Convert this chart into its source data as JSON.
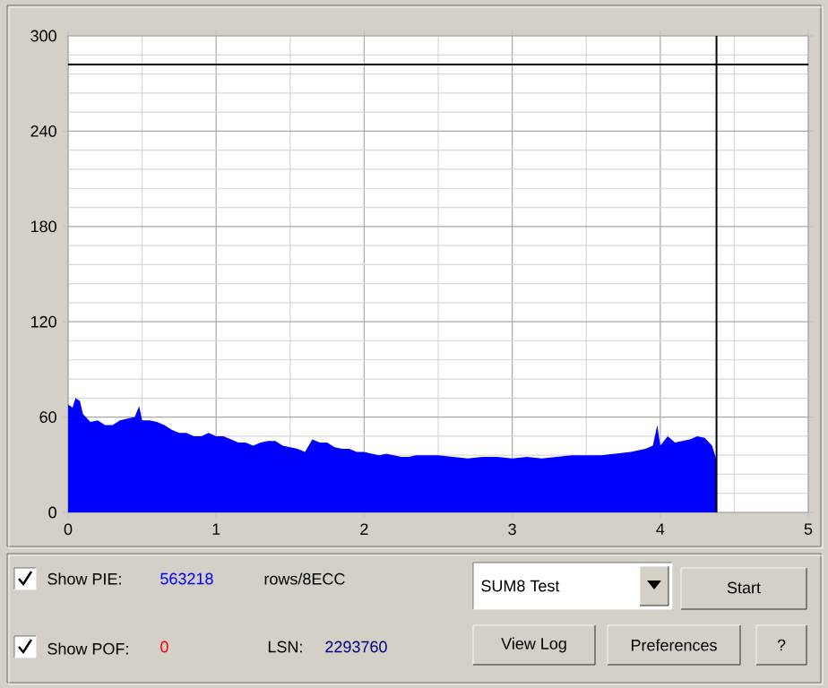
{
  "chart_data": {
    "type": "area",
    "x": [
      0,
      0.03,
      0.05,
      0.08,
      0.1,
      0.15,
      0.2,
      0.25,
      0.3,
      0.35,
      0.4,
      0.45,
      0.48,
      0.5,
      0.55,
      0.6,
      0.65,
      0.7,
      0.75,
      0.8,
      0.85,
      0.9,
      0.95,
      1.0,
      1.05,
      1.1,
      1.15,
      1.2,
      1.25,
      1.3,
      1.35,
      1.4,
      1.45,
      1.5,
      1.55,
      1.6,
      1.65,
      1.7,
      1.75,
      1.8,
      1.85,
      1.9,
      1.95,
      2.0,
      2.05,
      2.1,
      2.15,
      2.2,
      2.25,
      2.3,
      2.35,
      2.4,
      2.5,
      2.6,
      2.7,
      2.8,
      2.9,
      3.0,
      3.1,
      3.2,
      3.3,
      3.4,
      3.5,
      3.6,
      3.7,
      3.8,
      3.9,
      3.95,
      3.98,
      4.0,
      4.05,
      4.1,
      4.15,
      4.2,
      4.25,
      4.3,
      4.35,
      4.38
    ],
    "values": [
      68,
      66,
      72,
      70,
      62,
      57,
      58,
      55,
      55,
      58,
      59,
      60,
      67,
      58,
      58,
      57,
      55,
      52,
      50,
      50,
      48,
      48,
      50,
      48,
      48,
      46,
      44,
      44,
      42,
      44,
      45,
      45,
      42,
      41,
      40,
      38,
      46,
      44,
      44,
      41,
      40,
      40,
      38,
      38,
      37,
      36,
      37,
      36,
      35,
      35,
      36,
      36,
      36,
      35,
      34,
      35,
      35,
      34,
      35,
      34,
      35,
      36,
      36,
      36,
      37,
      38,
      40,
      42,
      55,
      42,
      48,
      44,
      45,
      46,
      48,
      47,
      42,
      33
    ],
    "color": "#0000ff",
    "xlim": [
      0,
      5
    ],
    "ylim": [
      0,
      300
    ],
    "xticks": [
      0,
      1,
      2,
      3,
      4,
      5
    ],
    "yticks": [
      0,
      60,
      120,
      180,
      240,
      300
    ],
    "grid": true,
    "ref_lines": [
      {
        "axis": "y",
        "value": 282,
        "color": "#000000"
      },
      {
        "axis": "x",
        "value": 4.38,
        "color": "#000000"
      }
    ],
    "annotations": [
      "Show PIE:",
      "563218",
      "rows/8ECC",
      "Show POF:",
      "0",
      "LSN:",
      "2293760",
      "SUM8 Test",
      "Start",
      "View Log",
      "Preferences",
      "?"
    ]
  }
}
